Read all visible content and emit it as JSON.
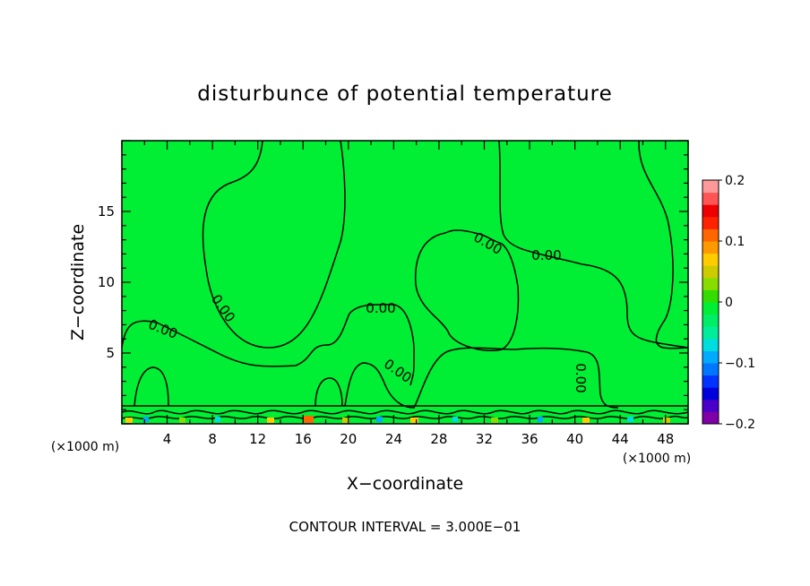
{
  "chart_data": {
    "type": "contour",
    "title": "disturbunce of potential temperature",
    "xlabel": "X−coordinate",
    "ylabel": "Z−coordinate",
    "x_unit_left": "(×1000 m)",
    "x_unit_right": "(×1000 m)",
    "xlim": [
      0,
      50
    ],
    "ylim": [
      0,
      20
    ],
    "x_ticks": [
      4,
      8,
      12,
      16,
      20,
      24,
      28,
      32,
      36,
      40,
      44,
      48
    ],
    "y_ticks": [
      5,
      10,
      15
    ],
    "contour_labels": [
      "0.00",
      "0.00",
      "0.00",
      "0.00",
      "0.00",
      "0.00",
      "0.00"
    ],
    "footer": "CONTOUR INTERVAL = 3.000E−01",
    "fill_color": "#00ee33",
    "colorbar": {
      "ticks": [
        "0.2",
        "0.1",
        "0",
        "−0.1",
        "−0.2"
      ],
      "tick_values": [
        0.2,
        0.1,
        0,
        -0.1,
        -0.2
      ],
      "colors": [
        "#7f00a8",
        "#4a00c8",
        "#0000dd",
        "#0033ff",
        "#0077ff",
        "#00aaff",
        "#00dddd",
        "#00ee99",
        "#00ee66",
        "#00ee33",
        "#33dd00",
        "#88dd00",
        "#cccc00",
        "#ffcc00",
        "#ff9900",
        "#ff6600",
        "#ff2200",
        "#ee0000",
        "#ff5555",
        "#ff9999"
      ]
    }
  }
}
